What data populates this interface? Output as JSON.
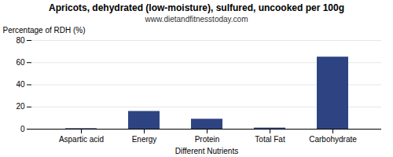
{
  "chart_data": {
    "type": "bar",
    "title": "Apricots, dehydrated (low-moisture), sulfured, uncooked per 100g",
    "subtitle": "www.dietandfitnesstoday.com",
    "categories": [
      "Aspartic acid",
      "Energy",
      "Protein",
      "Total Fat",
      "Carbohydrate"
    ],
    "values": [
      0.5,
      16,
      9,
      1,
      65
    ],
    "color": "#2e4482",
    "xlabel": "Different Nutrients",
    "ylabel": "Percentage of RDH (%)",
    "ylim": [
      0,
      80
    ],
    "yticks": [
      0,
      20,
      40,
      60,
      80
    ],
    "grid": true
  }
}
